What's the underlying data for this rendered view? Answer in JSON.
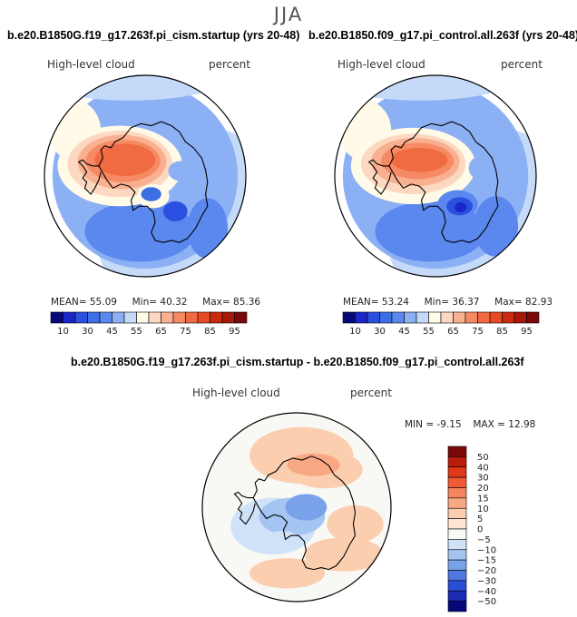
{
  "season": "JJA",
  "chart_data": [
    {
      "type": "heatmap",
      "title": "b.e20.B1850G.f19_g17.263f.pi_cism.startup (yrs 20-48)",
      "variable": "High-level cloud",
      "units": "percent",
      "projection": "south polar stereographic",
      "stats": {
        "mean_label": "MEAN=",
        "mean": "55.09",
        "min_label": "Min=",
        "min": "40.32",
        "max_label": "Max=",
        "max": "85.36"
      },
      "colorbar": {
        "orientation": "horizontal",
        "levels": [
          10,
          20,
          30,
          40,
          45,
          50,
          55,
          60,
          65,
          70,
          75,
          80,
          85,
          90,
          95
        ],
        "tick_labels": [
          "10",
          "30",
          "45",
          "55",
          "65",
          "75",
          "85",
          "95"
        ],
        "colors": [
          "#08087a",
          "#1a26c8",
          "#2b50e0",
          "#3c6ee6",
          "#5a88ee",
          "#8cb0f4",
          "#c4daf8",
          "#fffbe8",
          "#fcd8c0",
          "#f9b090",
          "#f68a64",
          "#f06a42",
          "#e84a26",
          "#cc2a10",
          "#a81808",
          "#7a0a0a"
        ]
      }
    },
    {
      "type": "heatmap",
      "title": "b.e20.B1850.f09_g17.pi_control.all.263f (yrs 20-48)",
      "variable": "High-level cloud",
      "units": "percent",
      "projection": "south polar stereographic",
      "stats": {
        "mean_label": "MEAN=",
        "mean": "53.24",
        "min_label": "Min=",
        "min": "36.37",
        "max_label": "Max=",
        "max": "82.93"
      },
      "colorbar": {
        "orientation": "horizontal",
        "levels": [
          10,
          20,
          30,
          40,
          45,
          50,
          55,
          60,
          65,
          70,
          75,
          80,
          85,
          90,
          95
        ],
        "tick_labels": [
          "10",
          "30",
          "45",
          "55",
          "65",
          "75",
          "85",
          "95"
        ],
        "colors": [
          "#08087a",
          "#1a26c8",
          "#2b50e0",
          "#3c6ee6",
          "#5a88ee",
          "#8cb0f4",
          "#c4daf8",
          "#fffbe8",
          "#fcd8c0",
          "#f9b090",
          "#f68a64",
          "#f06a42",
          "#e84a26",
          "#cc2a10",
          "#a81808",
          "#7a0a0a"
        ]
      }
    },
    {
      "type": "heatmap",
      "title": "b.e20.B1850G.f19_g17.263f.pi_cism.startup - b.e20.B1850.f09_g17.pi_control.all.263f",
      "variable": "High-level cloud",
      "units": "percent",
      "projection": "south polar stereographic",
      "stats": {
        "min_label": "MIN =",
        "min": "-9.15",
        "max_label": "MAX =",
        "max": "12.98"
      },
      "colorbar": {
        "orientation": "vertical",
        "levels": [
          50,
          40,
          30,
          20,
          15,
          10,
          5,
          0,
          -5,
          -10,
          -15,
          -20,
          -30,
          -40,
          -50
        ],
        "tick_labels": [
          "50",
          "40",
          "30",
          "20",
          "15",
          "10",
          "5",
          "0",
          "−5",
          "−10",
          "−15",
          "−20",
          "−30",
          "−40",
          "−50"
        ],
        "colors": [
          "#7a0a0a",
          "#b81c0a",
          "#e0381a",
          "#f05a34",
          "#f6845c",
          "#f9a884",
          "#fcceb0",
          "#fde6d4",
          "#f8f8f4",
          "#cfe2f8",
          "#a4c4f2",
          "#7aa2ea",
          "#4e78e0",
          "#2a4ed4",
          "#1a2ab4",
          "#08087a"
        ]
      }
    }
  ]
}
